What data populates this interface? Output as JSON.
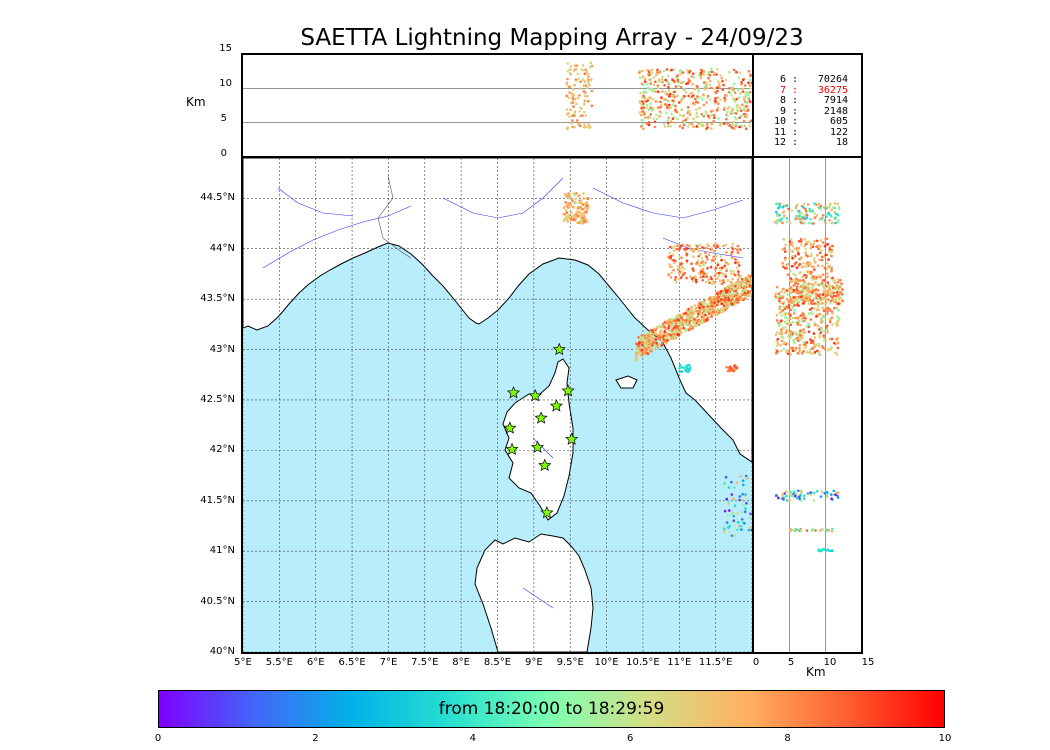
{
  "title": "SAETTA Lightning Mapping Array - 24/09/23",
  "altitude_axis": {
    "label": "Km",
    "ticks": [
      "15",
      "10",
      "5",
      "0"
    ],
    "range": [
      0,
      15
    ]
  },
  "side_axis": {
    "label": "Km",
    "ticks": [
      "0",
      "5",
      "10",
      "15"
    ],
    "range": [
      0,
      15
    ]
  },
  "map": {
    "lon_ticks": [
      "5°E",
      "5.5°E",
      "6°E",
      "6.5°E",
      "7°E",
      "7.5°E",
      "8°E",
      "8.5°E",
      "9°E",
      "9.5°E",
      "10°E",
      "10.5°E",
      "11°E",
      "11.5°E"
    ],
    "lat_ticks": [
      "44.5°N",
      "44°N",
      "43.5°N",
      "43°N",
      "42.5°N",
      "42°N",
      "41.5°N",
      "41°N",
      "40.5°N",
      "40°N"
    ],
    "lon_range": [
      5,
      12
    ],
    "lat_range": [
      40,
      44.9
    ],
    "sea_color": "#b8eefc",
    "grid": true
  },
  "stations": {
    "icon": "star-icon",
    "color": "#7fff00",
    "coords": [
      [
        9.35,
        43.0
      ],
      [
        8.72,
        42.57
      ],
      [
        9.02,
        42.54
      ],
      [
        9.47,
        42.59
      ],
      [
        9.31,
        42.44
      ],
      [
        9.1,
        42.32
      ],
      [
        8.67,
        42.22
      ],
      [
        9.52,
        42.11
      ],
      [
        8.7,
        42.01
      ],
      [
        9.05,
        42.03
      ],
      [
        9.15,
        41.85
      ],
      [
        9.18,
        41.38
      ]
    ]
  },
  "legend": {
    "rows": [
      {
        "level": "6",
        "count": "70264",
        "color": "#000000"
      },
      {
        "level": "7",
        "count": "36275",
        "color": "#ff0000"
      },
      {
        "level": "8",
        "count": "7914",
        "color": "#000000"
      },
      {
        "level": "9",
        "count": "2148",
        "color": "#000000"
      },
      {
        "level": "10",
        "count": "605",
        "color": "#000000"
      },
      {
        "level": "11",
        "count": "122",
        "color": "#000000"
      },
      {
        "level": "12",
        "count": "18",
        "color": "#000000"
      }
    ]
  },
  "colorbar": {
    "label": "from 18:20:00 to 18:29:59",
    "ticks": [
      "0",
      "2",
      "4",
      "6",
      "8",
      "10"
    ],
    "range": [
      0,
      10
    ],
    "colors": [
      "#7f00ff",
      "#4169fa",
      "#00b4e6",
      "#2ae1d0",
      "#7fffb0",
      "#d5dd85",
      "#ffb060",
      "#ff6030",
      "#ff0000"
    ]
  },
  "sources": {
    "clusters": [
      {
        "lon": [
          10.4,
          12.0
        ],
        "lat": [
          43.0,
          43.65
        ],
        "alt": [
          1.5,
          13.5
        ],
        "n": 900,
        "t": [
          5.5,
          9.5
        ],
        "shape": "band"
      },
      {
        "lon": [
          10.85,
          11.85
        ],
        "lat": [
          43.65,
          44.05
        ],
        "alt": [
          2,
          12
        ],
        "n": 220,
        "t": [
          6,
          9.5
        ],
        "shape": "box"
      },
      {
        "lon": [
          9.4,
          9.75
        ],
        "lat": [
          44.25,
          44.55
        ],
        "alt": [
          4,
          11
        ],
        "n": 120,
        "t": [
          6,
          8.5
        ],
        "shape": "box"
      },
      {
        "lon": [
          11.6,
          12.0
        ],
        "lat": [
          41.15,
          41.75
        ],
        "alt": [
          4,
          11
        ],
        "n": 60,
        "t": [
          0,
          8
        ],
        "shape": "box"
      },
      {
        "lon": [
          11.0,
          11.15
        ],
        "lat": [
          42.78,
          42.85
        ],
        "alt": [
          3,
          6
        ],
        "n": 25,
        "t": [
          3,
          4
        ],
        "shape": "box"
      },
      {
        "lon": [
          11.65,
          11.8
        ],
        "lat": [
          42.78,
          42.85
        ],
        "alt": [
          3,
          6
        ],
        "n": 20,
        "t": [
          8,
          9
        ],
        "shape": "box"
      }
    ],
    "side_clusters": [
      {
        "alt": [
          5,
          12.5
        ],
        "lat": [
          43.45,
          43.7
        ],
        "n": 180,
        "t": [
          6,
          9
        ]
      },
      {
        "alt": [
          3,
          12
        ],
        "lat": [
          42.95,
          43.65
        ],
        "n": 420,
        "t": [
          5,
          9.5
        ]
      },
      {
        "alt": [
          4,
          11
        ],
        "lat": [
          43.7,
          44.1
        ],
        "n": 160,
        "t": [
          6,
          9.5
        ]
      },
      {
        "alt": [
          3,
          12
        ],
        "lat": [
          44.25,
          44.45
        ],
        "n": 130,
        "t": [
          3,
          9
        ]
      },
      {
        "alt": [
          3,
          12
        ],
        "lat": [
          41.5,
          41.6
        ],
        "n": 70,
        "t": [
          0,
          8
        ]
      },
      {
        "alt": [
          5,
          11
        ],
        "lat": [
          41.2,
          41.22
        ],
        "n": 30,
        "t": [
          3,
          9
        ]
      },
      {
        "alt": [
          9,
          11
        ],
        "lat": [
          41.0,
          41.02
        ],
        "n": 15,
        "t": [
          3,
          4
        ]
      }
    ],
    "top_clusters": [
      {
        "lon": [
          9.45,
          9.8
        ],
        "alt": [
          4,
          14
        ],
        "n": 110,
        "t": [
          6,
          8.5
        ]
      },
      {
        "lon": [
          10.45,
          12.0
        ],
        "alt": [
          4,
          13
        ],
        "n": 500,
        "t": [
          5,
          9.5
        ]
      }
    ]
  }
}
